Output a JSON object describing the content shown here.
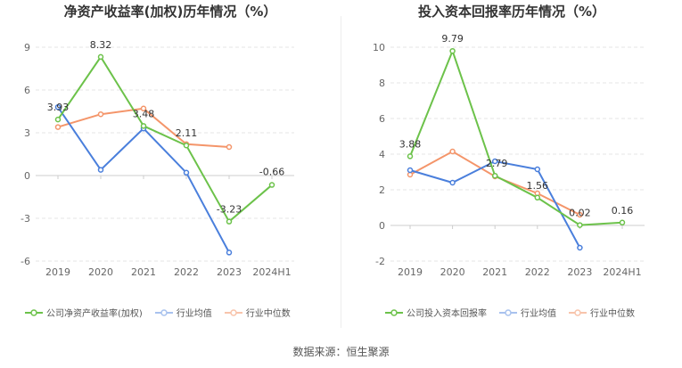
{
  "source_label": "数据来源：恒生聚源",
  "chart_data": [
    {
      "type": "line",
      "title": "净资产收益率(加权)历年情况（%）",
      "categories": [
        "2019",
        "2020",
        "2021",
        "2022",
        "2023",
        "2024H1"
      ],
      "ylim": [
        -6,
        9
      ],
      "yticks": [
        -6,
        -3,
        0,
        3,
        6,
        9
      ],
      "grid": true,
      "legend_position": "bottom-left",
      "series": [
        {
          "name": "公司净资产收益率(加权)",
          "color": "#6cc24a",
          "values": [
            3.93,
            8.32,
            3.48,
            2.11,
            -3.23,
            -0.66
          ],
          "labels": [
            "3.93",
            "8.32",
            "3.48",
            "2.11",
            "-3.23",
            "-0.66"
          ]
        },
        {
          "name": "行业均值",
          "color": "#4a7fdc",
          "values": [
            4.8,
            0.4,
            3.3,
            0.2,
            -5.4,
            null
          ]
        },
        {
          "name": "行业中位数",
          "color": "#f4956a",
          "values": [
            3.4,
            4.3,
            4.7,
            2.2,
            2.0,
            null
          ]
        }
      ]
    },
    {
      "type": "line",
      "title": "投入资本回报率历年情况（%）",
      "categories": [
        "2019",
        "2020",
        "2021",
        "2022",
        "2023",
        "2024H1"
      ],
      "ylim": [
        -2,
        10
      ],
      "yticks": [
        -2,
        0,
        2,
        4,
        6,
        8,
        10
      ],
      "grid": true,
      "legend_position": "bottom-left",
      "series": [
        {
          "name": "公司投入资本回报率",
          "color": "#6cc24a",
          "values": [
            3.88,
            9.79,
            2.79,
            1.56,
            0.02,
            0.16
          ],
          "labels": [
            "3.88",
            "9.79",
            "2.79",
            "1.56",
            "0.02",
            "0.16"
          ]
        },
        {
          "name": "行业均值",
          "color": "#4a7fdc",
          "values": [
            3.1,
            2.4,
            3.6,
            3.15,
            -1.25,
            null
          ]
        },
        {
          "name": "行业中位数",
          "color": "#f4956a",
          "values": [
            2.85,
            4.15,
            2.75,
            1.8,
            0.6,
            null
          ]
        }
      ]
    }
  ]
}
